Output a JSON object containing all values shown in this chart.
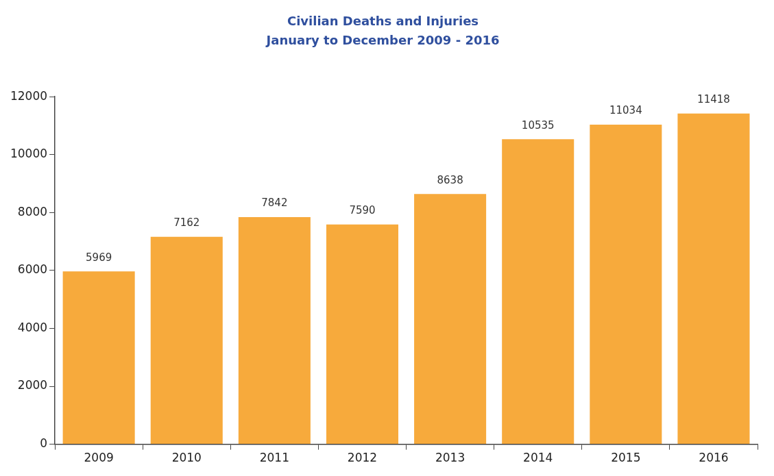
{
  "chart_data": {
    "type": "bar",
    "title": "Civilian Deaths and Injuries",
    "subtitle": "January to December 2009 - 2016",
    "categories": [
      "2009",
      "2010",
      "2011",
      "2012",
      "2013",
      "2014",
      "2015",
      "2016"
    ],
    "values": [
      5969,
      7162,
      7842,
      7590,
      8638,
      10535,
      11034,
      11418
    ],
    "color": "#f7aa3c",
    "ylim": [
      0,
      12000
    ],
    "yticks": [
      0,
      2000,
      4000,
      6000,
      8000,
      10000,
      12000
    ],
    "grid": false,
    "data_labels": true,
    "legend": false
  }
}
